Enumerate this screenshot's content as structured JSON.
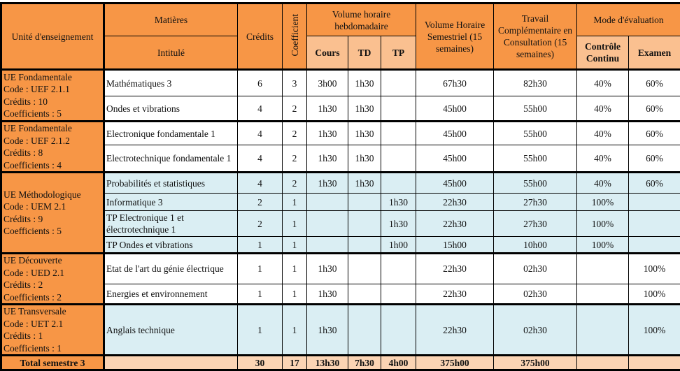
{
  "header": {
    "unit": "Unité d'enseignement",
    "matieres": "Matières",
    "intitule": "Intitulé",
    "credits": "Crédits",
    "coefficient": "Coefficient",
    "volume_hebdo": "Volume horaire hebdomadaire",
    "cours": "Cours",
    "td": "TD",
    "tp": "TP",
    "vhs": "Volume Horaire Semestriel (15 semaines)",
    "travail": "Travail Complémentaire en Consultation (15 semaines)",
    "mode": "Mode d'évaluation",
    "cc": "Contrôle Continu",
    "examen": "Examen"
  },
  "units": [
    {
      "lines": [
        "UE Fondamentale",
        "Code : UEF 2.1.1",
        "Crédits : 10",
        "Coefficients : 5"
      ],
      "color": "white",
      "subjects": [
        {
          "name": "Mathématiques 3",
          "credits": "6",
          "coef": "3",
          "cours": "3h00",
          "td": "1h30",
          "tp": "",
          "vhs": "67h30",
          "travail": "82h30",
          "cc": "40%",
          "examen": "60%"
        },
        {
          "name": "Ondes et vibrations",
          "credits": "4",
          "coef": "2",
          "cours": "1h30",
          "td": "1h30",
          "tp": "",
          "vhs": "45h00",
          "travail": "55h00",
          "cc": "40%",
          "examen": "60%"
        }
      ]
    },
    {
      "lines": [
        "UE Fondamentale",
        "Code : UEF 2.1.2",
        "Crédits : 8",
        "Coefficients : 4"
      ],
      "color": "white",
      "subjects": [
        {
          "name": "Electronique fondamentale 1",
          "credits": "4",
          "coef": "2",
          "cours": "1h30",
          "td": "1h30",
          "tp": "",
          "vhs": "45h00",
          "travail": "55h00",
          "cc": "40%",
          "examen": "60%"
        },
        {
          "name": "Electrotechnique fondamentale 1",
          "credits": "4",
          "coef": "2",
          "cours": "1h30",
          "td": "1h30",
          "tp": "",
          "vhs": "45h00",
          "travail": "55h00",
          "cc": "40%",
          "examen": "60%"
        }
      ]
    },
    {
      "lines": [
        "UE Méthodologique",
        "Code : UEM 2.1",
        "Crédits : 9",
        "Coefficients : 5"
      ],
      "color": "blue",
      "subjects": [
        {
          "name": "Probabilités et statistiques",
          "credits": "4",
          "coef": "2",
          "cours": "1h30",
          "td": "1h30",
          "tp": "",
          "vhs": "45h00",
          "travail": "55h00",
          "cc": "40%",
          "examen": "60%"
        },
        {
          "name": "Informatique 3",
          "credits": "2",
          "coef": "1",
          "cours": "",
          "td": "",
          "tp": "1h30",
          "vhs": "22h30",
          "travail": "27h30",
          "cc": "100%",
          "examen": ""
        },
        {
          "name": "TP Electronique 1 et électrotechnique 1",
          "credits": "2",
          "coef": "1",
          "cours": "",
          "td": "",
          "tp": "1h30",
          "vhs": "22h30",
          "travail": "27h30",
          "cc": "100%",
          "examen": ""
        },
        {
          "name": "TP Ondes et vibrations",
          "credits": "1",
          "coef": "1",
          "cours": "",
          "td": "",
          "tp": "1h00",
          "vhs": "15h00",
          "travail": "10h00",
          "cc": "100%",
          "examen": ""
        }
      ]
    },
    {
      "lines": [
        "UE Découverte",
        "Code : UED 2.1",
        "Crédits : 2",
        "Coefficients : 2"
      ],
      "color": "white",
      "subjects": [
        {
          "name": " Etat de l'art du génie électrique",
          "credits": "1",
          "coef": "1",
          "cours": "1h30",
          "td": "",
          "tp": "",
          "vhs": "22h30",
          "travail": "02h30",
          "cc": "",
          "examen": "100%"
        },
        {
          "name": "Energies et environnement",
          "credits": "1",
          "coef": "1",
          "cours": "1h30",
          "td": "",
          "tp": "",
          "vhs": "22h30",
          "travail": "02h30",
          "cc": "",
          "examen": "100%"
        }
      ]
    },
    {
      "lines": [
        "UE Transversale",
        "Code : UET 2.1",
        "Crédits : 1",
        "Coefficients : 1"
      ],
      "color": "blue",
      "subjects": [
        {
          "name": "Anglais technique",
          "credits": "1",
          "coef": "1",
          "cours": "1h30",
          "td": "",
          "tp": "",
          "vhs": "22h30",
          "travail": "02h30",
          "cc": "",
          "examen": "100%"
        }
      ]
    }
  ],
  "total": {
    "label": "Total semestre 3",
    "credits": "30",
    "coef": "17",
    "cours": "13h30",
    "td": "7h30",
    "tp": "4h00",
    "vhs": "375h00",
    "travail": "375h00",
    "cc": "",
    "examen": ""
  },
  "colors": {
    "orange": "#F79646",
    "light_orange": "#FBD4B4",
    "light_blue": "#DAEEF3"
  }
}
